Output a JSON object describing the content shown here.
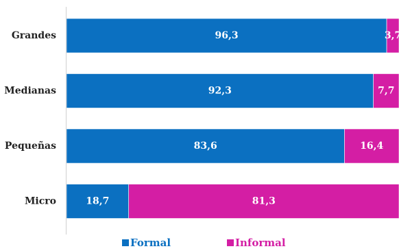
{
  "chart_data": {
    "type": "bar",
    "orientation": "horizontal",
    "stacked": true,
    "categories": [
      "Grandes",
      "Medianas",
      "Pequeñas",
      "Micro"
    ],
    "series": [
      {
        "name": "Formal",
        "values": [
          96.3,
          92.3,
          83.6,
          18.7
        ],
        "labels": [
          "96,3",
          "92,3",
          "83,6",
          "18,7"
        ],
        "color": "#0b70c1"
      },
      {
        "name": "Informal",
        "values": [
          3.7,
          7.7,
          16.4,
          81.3
        ],
        "labels": [
          "3,7",
          "7,7",
          "16,4",
          "81,3"
        ],
        "color": "#d41ea4"
      }
    ],
    "xlim": [
      0,
      100
    ],
    "grid": false,
    "legend": "bottom-center",
    "title": "",
    "xlabel": "",
    "ylabel": ""
  }
}
